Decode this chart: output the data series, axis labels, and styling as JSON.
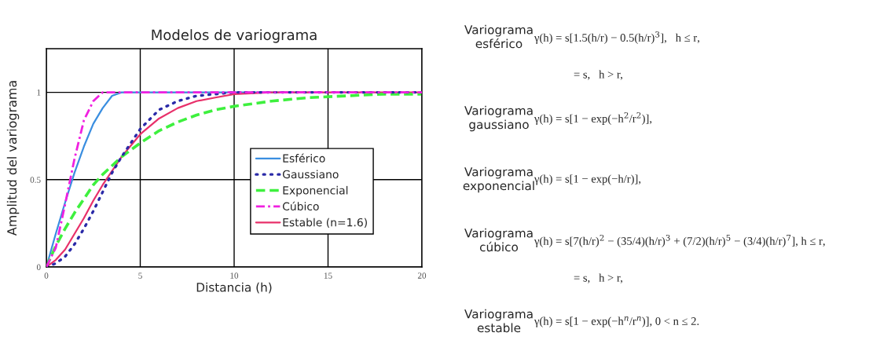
{
  "chart_data": {
    "type": "line",
    "title": "Modelos de variograma",
    "xlabel": "Distancia (h)",
    "ylabel": "Amplitud del variograma",
    "x": [
      0,
      0.5,
      1,
      1.5,
      2,
      2.5,
      3,
      3.5,
      4,
      5,
      6,
      7,
      8,
      9,
      10,
      12,
      14,
      16,
      18,
      20
    ],
    "series": [
      {
        "name": "Esférico",
        "color": "#3a8ee0",
        "line_style": "solid",
        "values": [
          0,
          0.19,
          0.37,
          0.54,
          0.69,
          0.82,
          0.91,
          0.98,
          1,
          1,
          1,
          1,
          1,
          1,
          1,
          1,
          1,
          null,
          null,
          null
        ]
      },
      {
        "name": "Gaussiano",
        "color": "#2a2aa8",
        "line_style": "dotted",
        "values": [
          0,
          0.02,
          0.06,
          0.13,
          0.22,
          0.32,
          0.43,
          0.54,
          0.63,
          0.79,
          0.9,
          0.95,
          0.98,
          0.99,
          1,
          1,
          1,
          1,
          1,
          1
        ]
      },
      {
        "name": "Exponencial",
        "color": "#3ef03e",
        "line_style": "dashed",
        "values": [
          0,
          0.12,
          0.22,
          0.31,
          0.39,
          0.47,
          0.53,
          0.58,
          0.63,
          0.71,
          0.78,
          0.83,
          0.87,
          0.9,
          0.92,
          0.95,
          0.97,
          0.98,
          0.99,
          0.99
        ]
      },
      {
        "name": "Cúbico",
        "color": "#f020e0",
        "line_style": "dashdot",
        "values": [
          0,
          0.11,
          0.36,
          0.62,
          0.84,
          0.95,
          1,
          1,
          1,
          1,
          1,
          1,
          1,
          1,
          1,
          1,
          1,
          1,
          1,
          1
        ]
      },
      {
        "name": "Estable (n=1.6)",
        "color": "#e8306a",
        "line_style": "solid",
        "values": [
          0,
          0.04,
          0.1,
          0.19,
          0.28,
          0.38,
          0.47,
          0.55,
          0.63,
          0.76,
          0.85,
          0.91,
          0.95,
          0.97,
          0.99,
          1,
          1,
          1,
          1,
          1
        ]
      }
    ],
    "xlim": [
      0,
      20
    ],
    "xticks": [
      0,
      5,
      10,
      15,
      20
    ],
    "ylim": [
      0,
      1.25
    ],
    "yticks": [
      0,
      0.5,
      1
    ],
    "grid": true,
    "legend": "lower right",
    "annotations": [
      "Variograma\nesférico",
      "γ(h) = s[1.5(h/r) − 0.5(h/r)$^{3}$],   h ≤ r,\n= s,   h > r,",
      "Variograma\ngaussiano",
      "γ(h) = s[1 − exp(−h$^{2}$/r$^{2}$)],",
      "Variograma\nexponencial",
      "γ(h) = s[1 − exp(−h/r)],",
      "Variograma\ncúbico",
      "γ(h) = s[7(h/r)$^{2}$ − (35/4)(h/r)$^{3}$ + (7/2)(h/r)$^{5}$ − (3/4)(h/r)$^{7}$], h ≤ r,\n= s,   h > r,",
      "Variograma\nestable",
      "γ(h) = s[1 − exp(−h$^{n}$/r$^{n}$)], 0 < n ≤ 2."
    ]
  }
}
